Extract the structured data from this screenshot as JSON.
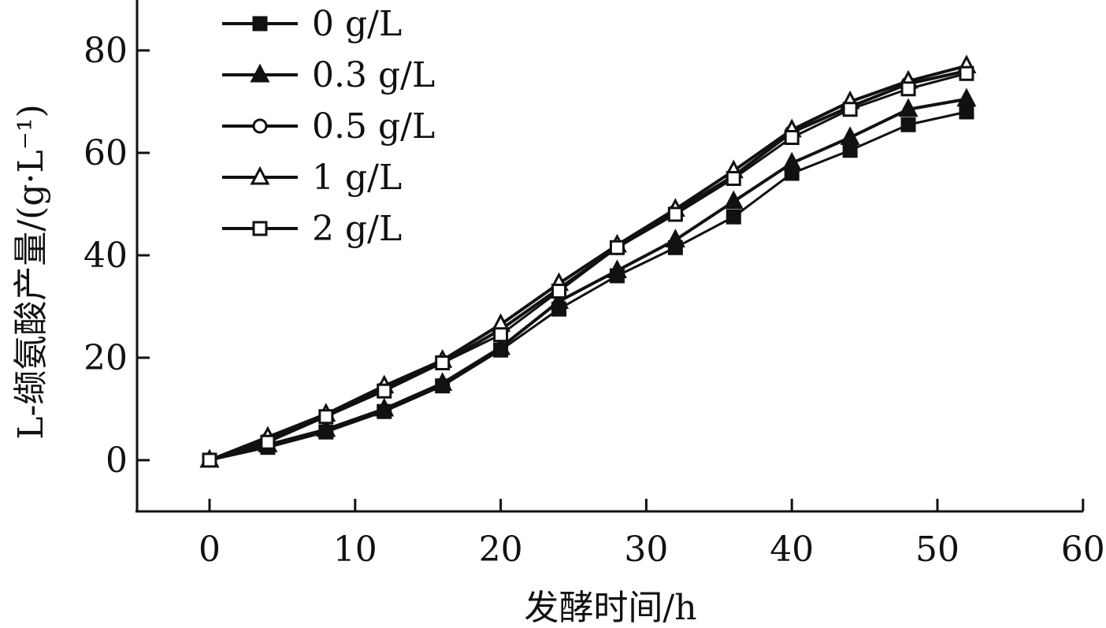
{
  "chart_data": {
    "type": "line",
    "title": "",
    "xlabel": "发酵时间/h",
    "ylabel": "L-缬氨酸产量/(g·L⁻¹)",
    "xlim": [
      -5,
      60
    ],
    "ylim": [
      -10,
      90
    ],
    "xticks": [
      0,
      10,
      20,
      30,
      40,
      50,
      60
    ],
    "yticks": [
      0,
      20,
      40,
      60,
      80
    ],
    "grid": false,
    "legend_position": "top-left",
    "x": [
      0,
      4,
      8,
      12,
      16,
      20,
      24,
      28,
      32,
      36,
      40,
      44,
      48,
      52
    ],
    "series": [
      {
        "name": "0 g/L",
        "marker": "square-filled",
        "values": [
          0,
          2.5,
          5.5,
          9.5,
          14.5,
          21.5,
          29.5,
          36,
          41.5,
          47.5,
          56,
          60.5,
          65.5,
          68
        ]
      },
      {
        "name": "0.3 g/L",
        "marker": "triangle-filled",
        "values": [
          0,
          3,
          6,
          10,
          15,
          22,
          31,
          37,
          43,
          50.5,
          58,
          63,
          68.5,
          70.5
        ]
      },
      {
        "name": "0.5 g/L",
        "marker": "circle-open",
        "values": [
          0,
          4,
          8.5,
          14,
          19,
          25.5,
          33.5,
          41.5,
          48.5,
          55.5,
          64,
          69,
          73.5,
          76
        ]
      },
      {
        "name": "1 g/L",
        "marker": "triangle-open",
        "values": [
          0,
          4.5,
          9,
          14.5,
          19.5,
          26.5,
          34.5,
          42,
          49,
          56.5,
          64.5,
          70,
          74,
          77
        ]
      },
      {
        "name": "2 g/L",
        "marker": "square-open",
        "values": [
          0,
          3.5,
          8.5,
          13.5,
          19,
          24.5,
          33,
          41.5,
          48,
          55,
          63,
          68.5,
          72.5,
          75.5
        ]
      }
    ]
  }
}
